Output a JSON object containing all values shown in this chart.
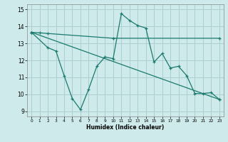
{
  "background_color": "#ceeaea",
  "grid_color": "#aacfcf",
  "line_color": "#1a7a6e",
  "xlabel": "Humidex (Indice chaleur)",
  "xlim": [
    -0.5,
    23.5
  ],
  "ylim": [
    8.7,
    15.3
  ],
  "yticks": [
    9,
    10,
    11,
    12,
    13,
    14,
    15
  ],
  "xticks": [
    0,
    1,
    2,
    3,
    4,
    5,
    6,
    7,
    8,
    9,
    10,
    11,
    12,
    13,
    14,
    15,
    16,
    17,
    18,
    19,
    20,
    21,
    22,
    23
  ],
  "line1_x": [
    0,
    1,
    2,
    10,
    23
  ],
  "line1_y": [
    13.65,
    13.62,
    13.58,
    13.3,
    13.3
  ],
  "line2_x": [
    0,
    2,
    3,
    4,
    5,
    6,
    7,
    8,
    9,
    10,
    11,
    12,
    13,
    14,
    15,
    16,
    17,
    18,
    19,
    20,
    21,
    22,
    23
  ],
  "line2_y": [
    13.65,
    12.75,
    12.55,
    11.1,
    9.75,
    9.1,
    10.3,
    11.65,
    12.2,
    12.1,
    14.75,
    14.35,
    14.05,
    13.9,
    11.9,
    12.4,
    11.55,
    11.65,
    11.1,
    10.05,
    10.05,
    10.1,
    9.7
  ],
  "line3_x": [
    0,
    23
  ],
  "line3_y": [
    13.65,
    9.7
  ]
}
